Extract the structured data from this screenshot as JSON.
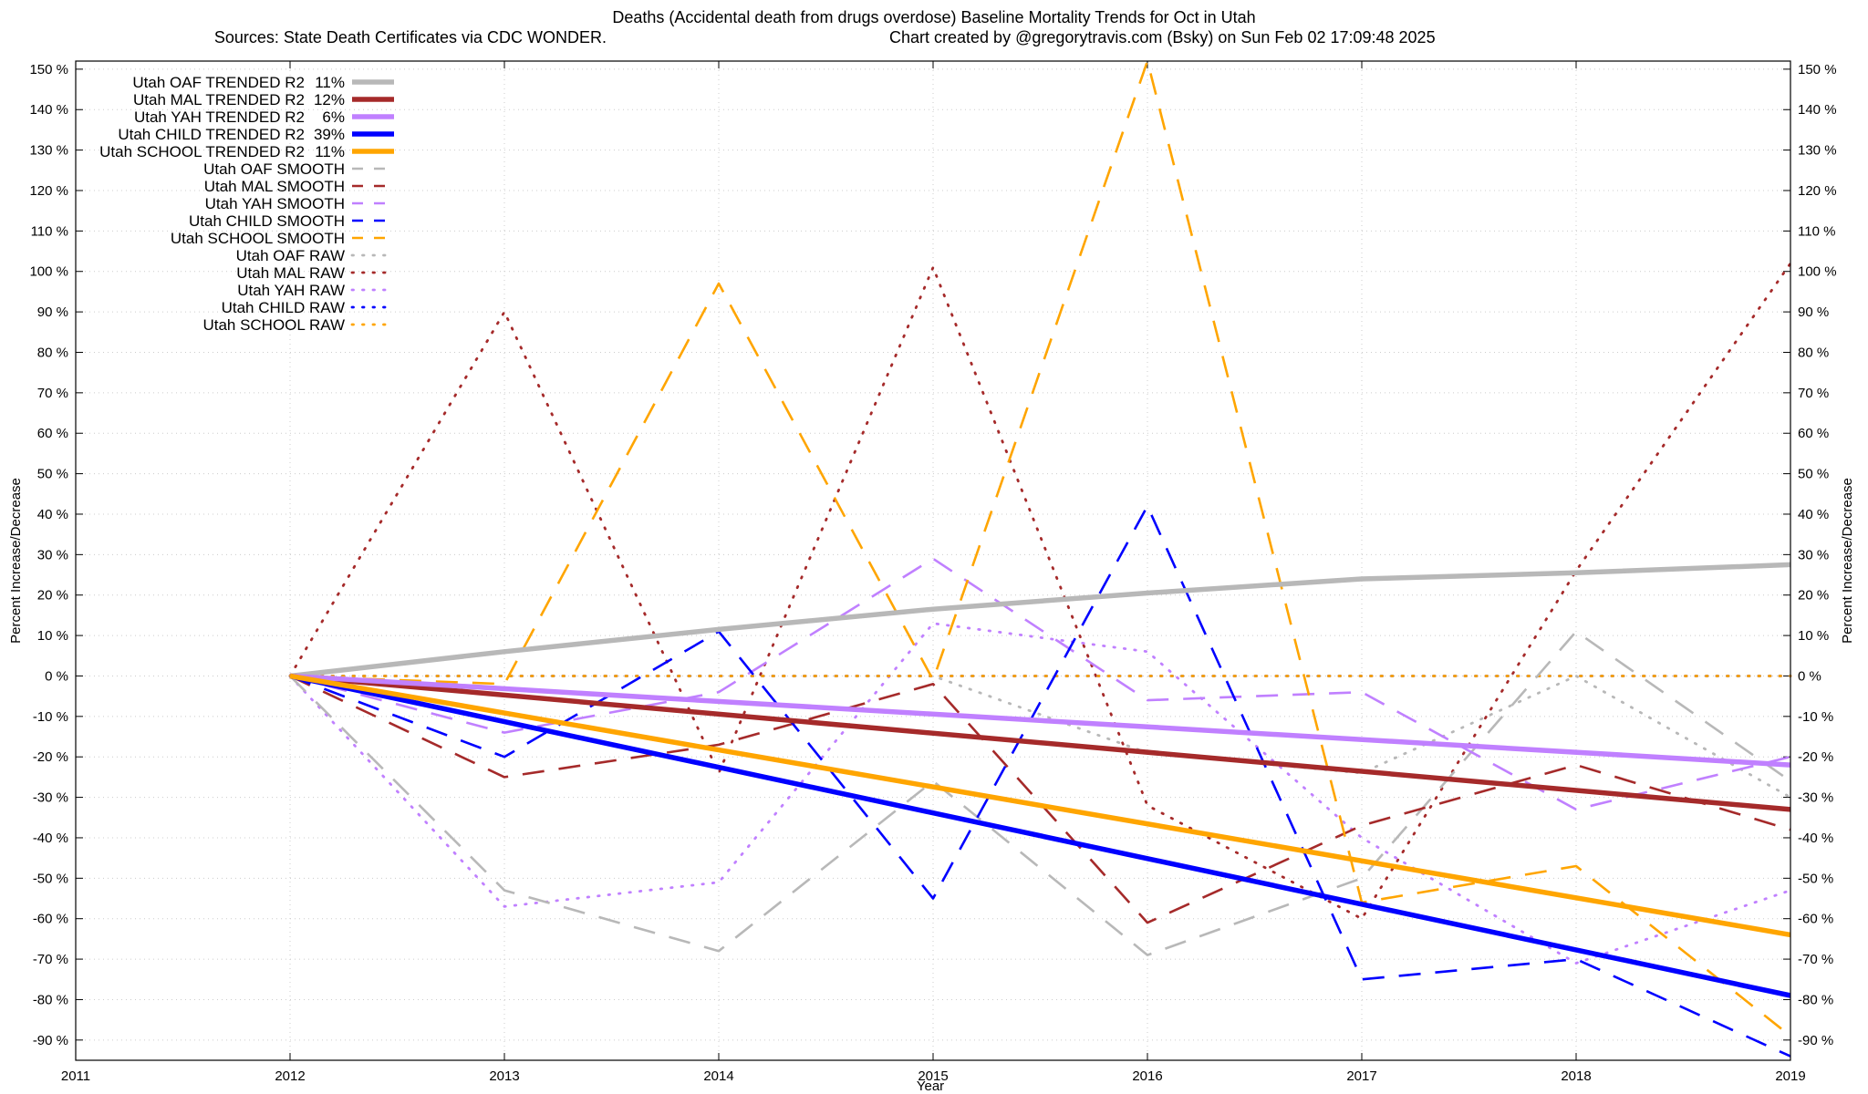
{
  "chart_data": {
    "type": "line",
    "title": "Deaths (Accidental death from drugs overdose)  Baseline Mortality Trends for Oct in Utah",
    "subtitle_left": "Sources: State Death Certificates via CDC WONDER.",
    "subtitle_right": "Chart created by @gregorytravis.com (Bsky) on Sun Feb 02 17:09:48 2025",
    "xlabel": "Year",
    "ylabel_left": "Percent Increase/Decrease",
    "ylabel_right": "Percent Increase/Decrease",
    "xlim": [
      2011,
      2019
    ],
    "ylim": [
      -95,
      152
    ],
    "x_ticks": [
      2011,
      2012,
      2013,
      2014,
      2015,
      2016,
      2017,
      2018,
      2019
    ],
    "x_tick_labels": [
      "2011",
      "2012",
      "2013",
      "2014",
      "2015",
      "2016",
      "2017",
      "2018",
      "2019"
    ],
    "y_ticks": [
      -90,
      -80,
      -70,
      -60,
      -50,
      -40,
      -30,
      -20,
      -10,
      0,
      10,
      20,
      30,
      40,
      50,
      60,
      70,
      80,
      90,
      100,
      110,
      120,
      130,
      140,
      150
    ],
    "y_tick_labels": [
      "-90 %",
      "-80 %",
      "-70 %",
      "-60 %",
      "-50 %",
      "-40 %",
      "-30 %",
      "-20 %",
      "-10 %",
      "0 %",
      "10 %",
      "20 %",
      "30 %",
      "40 %",
      "50 %",
      "60 %",
      "70 %",
      "80 %",
      "90 %",
      "100 %",
      "110 %",
      "120 %",
      "130 %",
      "140 %",
      "150 %"
    ],
    "grid": true,
    "legend_position": "top-left",
    "colors": {
      "OAF": "#b8b8b8",
      "MAL": "#a52a2a",
      "YAH": "#c080ff",
      "CHILD": "#0000ff",
      "SCHOOL": "#ffa500"
    },
    "series": [
      {
        "name": "Utah OAF TRENDED R2",
        "r2": "11%",
        "group": "OAF",
        "style": "trend",
        "x": [
          2012,
          2013,
          2014,
          2015,
          2016,
          2017,
          2018,
          2019
        ],
        "y": [
          0,
          6,
          11.5,
          16.5,
          20.5,
          24,
          25.5,
          27.5
        ]
      },
      {
        "name": "Utah MAL TRENDED R2",
        "r2": "12%",
        "group": "MAL",
        "style": "trend",
        "x": [
          2012,
          2019
        ],
        "y": [
          0,
          -33
        ]
      },
      {
        "name": "Utah YAH TRENDED R2",
        "r2": "6%",
        "group": "YAH",
        "style": "trend",
        "x": [
          2012,
          2019
        ],
        "y": [
          0,
          -22
        ]
      },
      {
        "name": "Utah CHILD TRENDED R2",
        "r2": "39%",
        "group": "CHILD",
        "style": "trend",
        "x": [
          2012,
          2019
        ],
        "y": [
          0,
          -79
        ]
      },
      {
        "name": "Utah SCHOOL TRENDED R2",
        "r2": "11%",
        "group": "SCHOOL",
        "style": "trend",
        "x": [
          2012,
          2019
        ],
        "y": [
          0,
          -64
        ]
      },
      {
        "name": "Utah OAF SMOOTH",
        "group": "OAF",
        "style": "smooth",
        "x": [
          2012,
          2013,
          2014,
          2015,
          2016,
          2017,
          2018,
          2019
        ],
        "y": [
          0,
          -53,
          -68,
          -26,
          -69,
          -50,
          11,
          -26
        ]
      },
      {
        "name": "Utah MAL SMOOTH",
        "group": "MAL",
        "style": "smooth",
        "x": [
          2012,
          2013,
          2014,
          2015,
          2016,
          2017,
          2018,
          2019
        ],
        "y": [
          0,
          -25,
          -17,
          -2,
          -61,
          -37,
          -22,
          -38
        ]
      },
      {
        "name": "Utah YAH SMOOTH",
        "group": "YAH",
        "style": "smooth",
        "x": [
          2012,
          2013,
          2014,
          2015,
          2016,
          2017,
          2018,
          2019
        ],
        "y": [
          0,
          -14,
          -4,
          29,
          -6,
          -4,
          -33,
          -20
        ]
      },
      {
        "name": "Utah CHILD SMOOTH",
        "group": "CHILD",
        "style": "smooth",
        "x": [
          2012,
          2013,
          2014,
          2015,
          2016,
          2017,
          2018,
          2019
        ],
        "y": [
          0,
          -20,
          11,
          -55,
          42,
          -75,
          -70,
          -94
        ]
      },
      {
        "name": "Utah SCHOOL SMOOTH",
        "group": "SCHOOL",
        "style": "smooth",
        "x": [
          2012,
          2013,
          2014,
          2015,
          2016,
          2017,
          2018,
          2019
        ],
        "y": [
          0,
          -2,
          97,
          -1,
          152,
          -56,
          -47,
          -89
        ]
      },
      {
        "name": "Utah OAF RAW",
        "group": "OAF",
        "style": "raw",
        "x": [
          2012,
          2013,
          2014,
          2015,
          2016,
          2017,
          2018,
          2019
        ],
        "y": [
          0,
          0,
          0,
          0,
          -19,
          -24,
          0,
          -30
        ]
      },
      {
        "name": "Utah MAL RAW",
        "group": "MAL",
        "style": "raw",
        "x": [
          2012,
          2013,
          2014,
          2015,
          2016,
          2017,
          2018,
          2019
        ],
        "y": [
          0,
          90,
          -24,
          101,
          -32,
          -60,
          26,
          102
        ]
      },
      {
        "name": "Utah YAH RAW",
        "group": "YAH",
        "style": "raw",
        "x": [
          2012,
          2013,
          2014,
          2015,
          2016,
          2017,
          2018,
          2019
        ],
        "y": [
          0,
          -57,
          -51,
          13,
          6,
          -40,
          -71,
          -53
        ]
      },
      {
        "name": "Utah CHILD RAW",
        "group": "CHILD",
        "style": "raw",
        "x": [
          2012,
          2013,
          2014,
          2015,
          2016,
          2017,
          2018,
          2019
        ],
        "y": [
          0,
          0,
          0,
          0,
          0,
          0,
          0,
          0
        ]
      },
      {
        "name": "Utah SCHOOL RAW",
        "group": "SCHOOL",
        "style": "raw",
        "x": [
          2012,
          2013,
          2014,
          2015,
          2016,
          2017,
          2018,
          2019
        ],
        "y": [
          0,
          0,
          0,
          0,
          0,
          0,
          0,
          0
        ]
      }
    ]
  }
}
